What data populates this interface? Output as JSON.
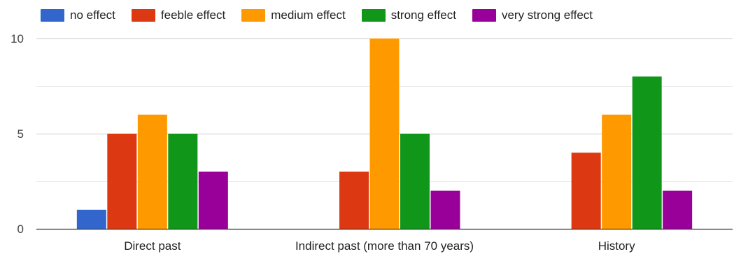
{
  "chart_data": {
    "type": "bar",
    "categories": [
      "Direct past",
      "Indirect past (more than 70 years)",
      "History"
    ],
    "series": [
      {
        "name": "no effect",
        "color": "#3366cc",
        "values": [
          1,
          0,
          0
        ]
      },
      {
        "name": "feeble effect",
        "color": "#dc3912",
        "values": [
          5,
          3,
          4
        ]
      },
      {
        "name": "medium effect",
        "color": "#ff9900",
        "values": [
          6,
          10,
          6
        ]
      },
      {
        "name": "strong effect",
        "color": "#109618",
        "values": [
          5,
          5,
          8
        ]
      },
      {
        "name": "very strong effect",
        "color": "#990099",
        "values": [
          3,
          2,
          2
        ]
      }
    ],
    "yticks": [
      "0",
      "5",
      "10"
    ],
    "ylim": [
      0,
      10
    ],
    "grid": true,
    "legend": "top"
  }
}
